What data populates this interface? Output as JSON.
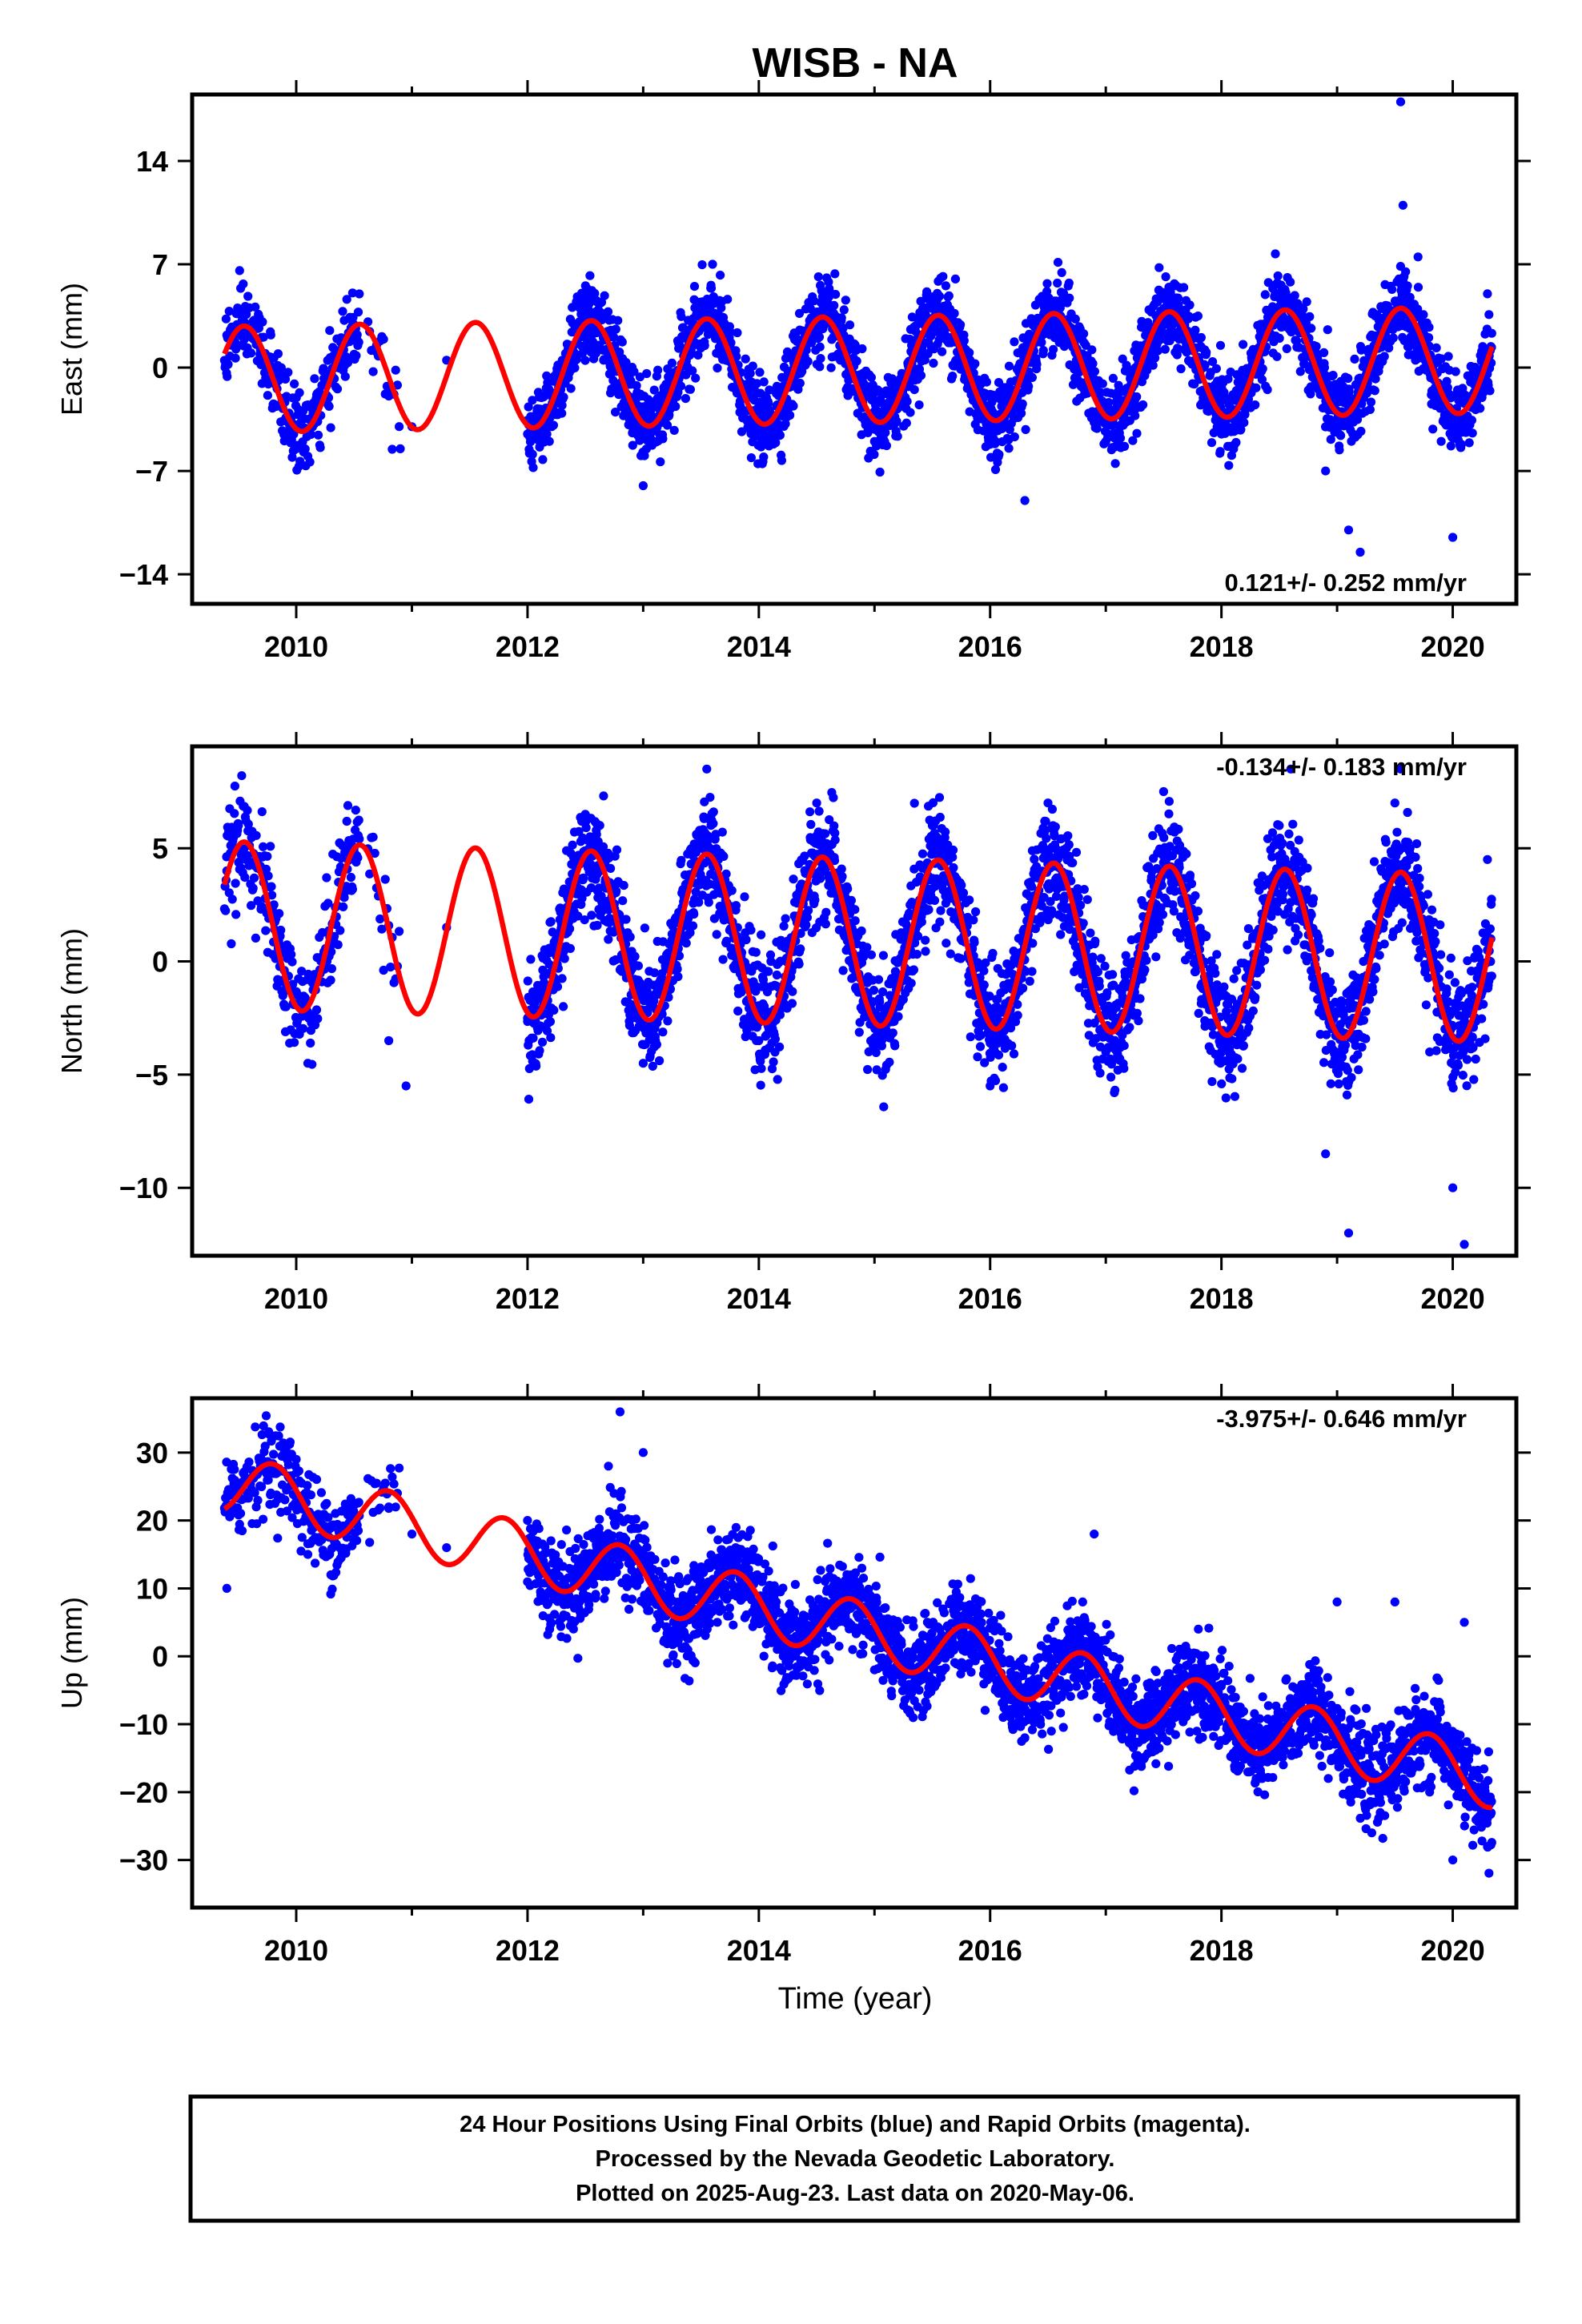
{
  "chart_data": {
    "type": "scatter",
    "title": "WISB - NA",
    "xlabel": "Time (year)",
    "x_ticks": [
      "2010",
      "2012",
      "2014",
      "2016",
      "2018",
      "2020"
    ],
    "xlim": [
      2009.1,
      2020.55
    ],
    "series_legend": [
      {
        "name": "Final Orbits",
        "color": "#0000ff"
      },
      {
        "name": "Model fit",
        "color": "#ff0000"
      }
    ],
    "panels": [
      {
        "id": "east",
        "ylabel": "East (mm)",
        "ylim": [
          -16,
          18.5
        ],
        "y_ticks": [
          -14,
          -7,
          0,
          7,
          14
        ],
        "rate_label": "0.121+/- 0.252 mm/yr",
        "rate_position": "bottom-right",
        "trend_slope": 0.121,
        "annual_amplitude": 3.6,
        "annual_phase_peak_year_fraction": 0.55,
        "intercept": -0.8,
        "scatter_sd": 1.3,
        "obs_points": [
          [
            2009.4,
            2.2
          ],
          [
            2009.5,
            1.5
          ],
          [
            2009.8,
            -2.5
          ],
          [
            2010.0,
            -5.5
          ],
          [
            2010.1,
            -6.0
          ],
          [
            2010.3,
            -1.0
          ],
          [
            2010.5,
            2.5
          ],
          [
            2010.7,
            1.0
          ],
          [
            2010.9,
            -5.5
          ],
          [
            2011.0,
            -4.0
          ],
          [
            2011.3,
            0.5
          ],
          [
            2012.0,
            -4.5
          ],
          [
            2012.3,
            0.5
          ],
          [
            2012.5,
            3.0
          ],
          [
            2012.8,
            -1.5
          ],
          [
            2013.0,
            -8.0
          ],
          [
            2013.5,
            3.5
          ],
          [
            2013.6,
            7.0
          ],
          [
            2014.0,
            -4.5
          ],
          [
            2014.5,
            3.0
          ],
          [
            2015.0,
            -5.0
          ],
          [
            2015.5,
            4.0
          ],
          [
            2015.7,
            6.0
          ],
          [
            2016.0,
            -4.5
          ],
          [
            2016.3,
            -9.0
          ],
          [
            2016.5,
            3.0
          ],
          [
            2017.0,
            -5.0
          ],
          [
            2017.5,
            4.0
          ],
          [
            2018.0,
            -4.5
          ],
          [
            2018.5,
            5.0
          ],
          [
            2018.9,
            -7.0
          ],
          [
            2019.1,
            -11.0
          ],
          [
            2019.2,
            -12.5
          ],
          [
            2019.5,
            3.5
          ],
          [
            2019.55,
            18.0
          ],
          [
            2019.57,
            11.0
          ],
          [
            2019.7,
            7.5
          ],
          [
            2019.9,
            -5.0
          ],
          [
            2020.0,
            -11.5
          ],
          [
            2020.1,
            -2.0
          ],
          [
            2020.3,
            5.0
          ]
        ]
      },
      {
        "id": "north",
        "ylabel": "North (mm)",
        "ylim": [
          -13,
          9.5
        ],
        "y_ticks": [
          -10,
          -5,
          0,
          5
        ],
        "rate_label": "-0.134+/- 0.183 mm/yr",
        "rate_position": "top-right",
        "trend_slope": -0.134,
        "annual_amplitude": 3.7,
        "annual_phase_peak_year_fraction": 0.55,
        "intercept": 1.6,
        "scatter_sd": 1.2,
        "obs_points": [
          [
            2009.4,
            4.0
          ],
          [
            2009.5,
            6.0
          ],
          [
            2009.9,
            -2.0
          ],
          [
            2010.1,
            -4.5
          ],
          [
            2010.5,
            5.0
          ],
          [
            2010.8,
            -3.5
          ],
          [
            2010.95,
            -5.5
          ],
          [
            2011.3,
            1.5
          ],
          [
            2012.0,
            -2.5
          ],
          [
            2012.5,
            6.5
          ],
          [
            2013.0,
            -4.5
          ],
          [
            2013.55,
            8.5
          ],
          [
            2014.0,
            -3.5
          ],
          [
            2014.5,
            7.0
          ],
          [
            2015.0,
            -3.5
          ],
          [
            2015.5,
            6.0
          ],
          [
            2016.0,
            -5.5
          ],
          [
            2016.5,
            7.0
          ],
          [
            2017.0,
            -4.0
          ],
          [
            2017.5,
            7.5
          ],
          [
            2018.0,
            -4.0
          ],
          [
            2018.5,
            6.0
          ],
          [
            2018.6,
            8.5
          ],
          [
            2018.9,
            -8.5
          ],
          [
            2019.1,
            -12.0
          ],
          [
            2019.5,
            7.0
          ],
          [
            2019.55,
            8.5
          ],
          [
            2019.8,
            -4.0
          ],
          [
            2020.0,
            -10.0
          ],
          [
            2020.1,
            -12.5
          ],
          [
            2020.3,
            4.5
          ]
        ]
      },
      {
        "id": "up",
        "ylabel": "Up (mm)",
        "ylim": [
          -37,
          38
        ],
        "y_ticks": [
          -30,
          -20,
          -10,
          0,
          10,
          20,
          30
        ],
        "rate_label": "-3.975+/- 0.646 mm/yr",
        "rate_position": "top-right",
        "trend_slope": -3.975,
        "annual_amplitude": 4.4,
        "annual_phase_peak_year_fraction": 0.8,
        "intercept": 25.5,
        "scatter_sd": 3.2,
        "obs_points": [
          [
            2009.4,
            10.0
          ],
          [
            2009.5,
            24.0
          ],
          [
            2009.8,
            28.0
          ],
          [
            2010.0,
            29.0
          ],
          [
            2010.1,
            15.0
          ],
          [
            2010.3,
            12.0
          ],
          [
            2010.5,
            20.0
          ],
          [
            2010.8,
            22.0
          ],
          [
            2011.0,
            18.0
          ],
          [
            2011.3,
            16.0
          ],
          [
            2012.0,
            20.0
          ],
          [
            2012.3,
            8.0
          ],
          [
            2012.7,
            28.0
          ],
          [
            2012.8,
            36.0
          ],
          [
            2013.0,
            30.0
          ],
          [
            2013.3,
            2.0
          ],
          [
            2013.8,
            16.0
          ],
          [
            2014.0,
            8.0
          ],
          [
            2014.3,
            0.0
          ],
          [
            2014.8,
            12.0
          ],
          [
            2015.0,
            -2.0
          ],
          [
            2015.3,
            -8.0
          ],
          [
            2015.8,
            6.0
          ],
          [
            2016.3,
            -12.0
          ],
          [
            2016.8,
            8.0
          ],
          [
            2016.9,
            18.0
          ],
          [
            2017.3,
            -15.0
          ],
          [
            2017.8,
            4.0
          ],
          [
            2018.3,
            -18.0
          ],
          [
            2018.8,
            -2.0
          ],
          [
            2019.0,
            8.0
          ],
          [
            2019.3,
            -26.0
          ],
          [
            2019.5,
            8.0
          ],
          [
            2019.8,
            -20.0
          ],
          [
            2020.0,
            -30.0
          ],
          [
            2020.1,
            5.0
          ],
          [
            2020.3,
            -28.0
          ]
        ]
      }
    ]
  },
  "footer": {
    "line1": "24 Hour Positions Using Final Orbits (blue) and Rapid Orbits (magenta).",
    "line2": "Processed by the Nevada Geodetic Laboratory.",
    "line3": "Plotted on 2025-Aug-23. Last data on 2020-May-06."
  }
}
